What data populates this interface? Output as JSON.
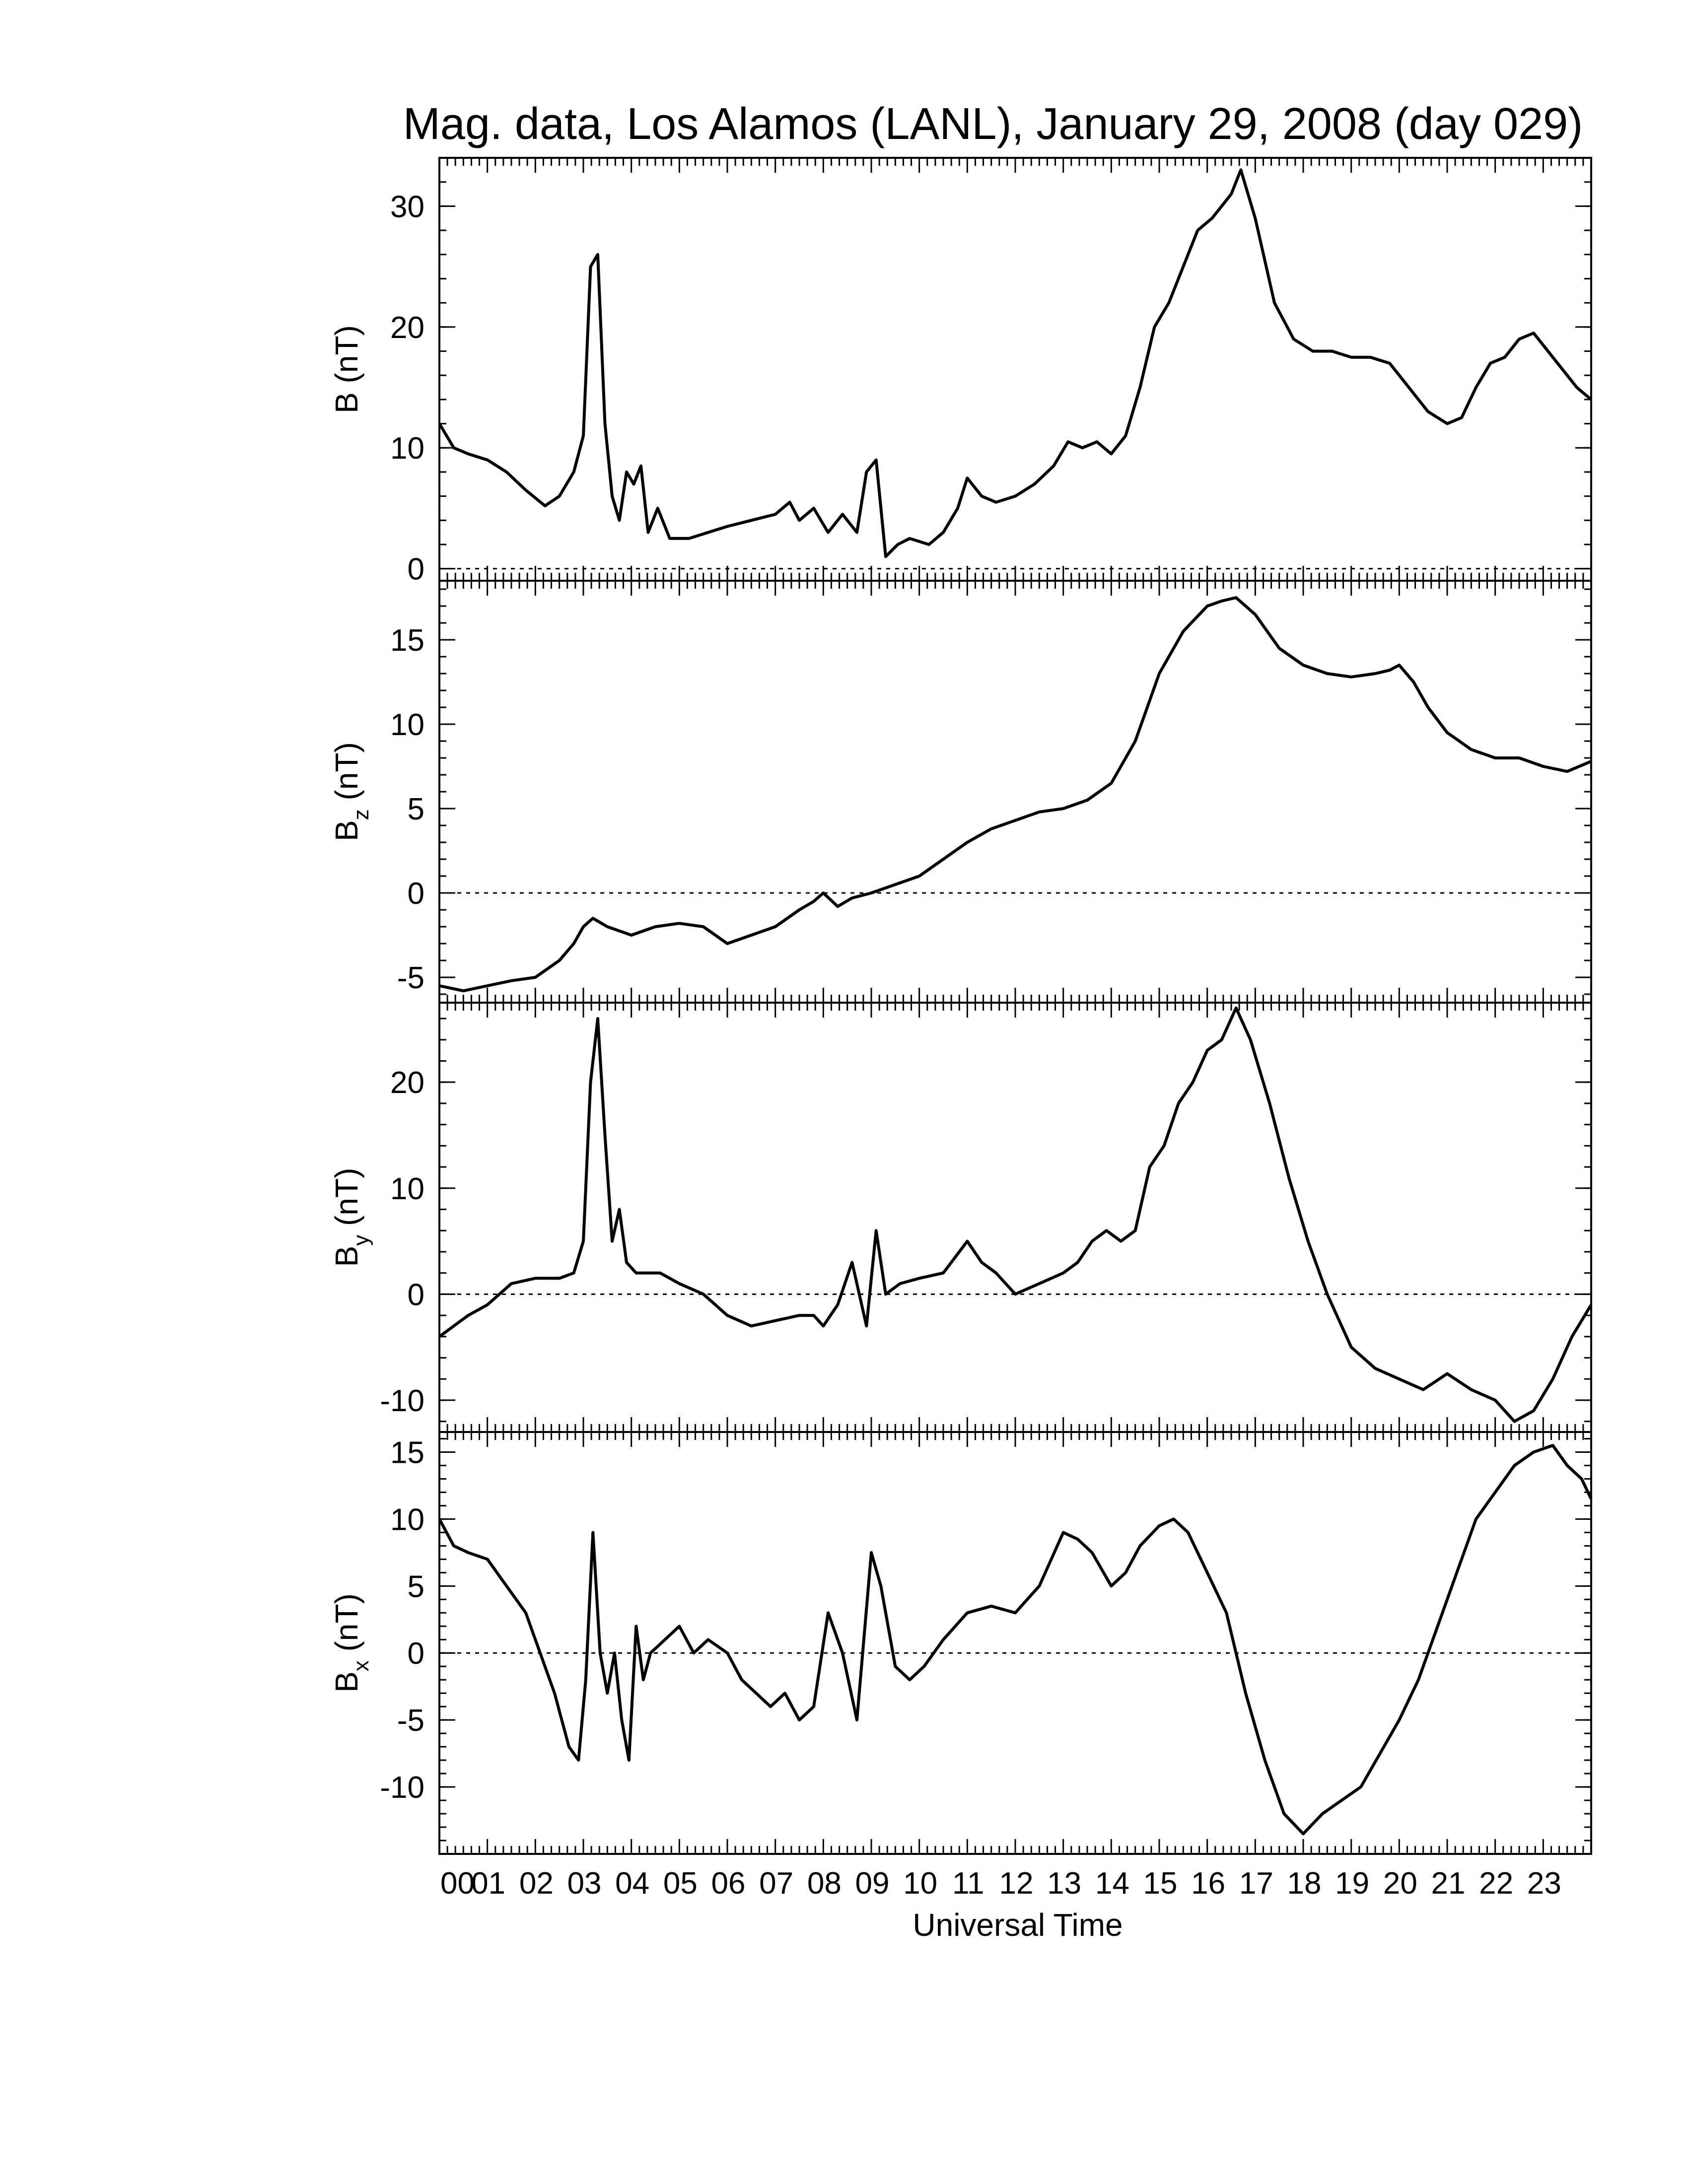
{
  "figure": {
    "title": "Mag. data, Los Alamos (LANL), January 29, 2008 (day 029)",
    "xlabel": "Universal Time"
  },
  "chart_data": [
    {
      "type": "line",
      "name": "B",
      "ylabel": "B (nT)",
      "ylabel_main": "B",
      "ylabel_sub": "",
      "ylabel_unit": " (nT)",
      "ylim": [
        -1,
        34
      ],
      "yticks": [
        0,
        10,
        20,
        30
      ],
      "zero_line": true,
      "x": [
        0,
        0.3,
        0.6,
        1,
        1.4,
        1.8,
        2.2,
        2.5,
        2.8,
        3,
        3.15,
        3.3,
        3.45,
        3.6,
        3.75,
        3.9,
        4.05,
        4.2,
        4.35,
        4.55,
        4.8,
        5.2,
        5.6,
        6,
        6.5,
        7,
        7.3,
        7.5,
        7.8,
        8.1,
        8.4,
        8.7,
        8.9,
        9.1,
        9.3,
        9.55,
        9.8,
        10.2,
        10.5,
        10.8,
        11,
        11.3,
        11.6,
        12,
        12.4,
        12.8,
        13.1,
        13.4,
        13.7,
        14,
        14.3,
        14.6,
        14.9,
        15.2,
        15.5,
        15.8,
        16.1,
        16.3,
        16.5,
        16.7,
        17,
        17.4,
        17.8,
        18.2,
        18.6,
        19,
        19.4,
        19.8,
        20.2,
        20.6,
        21,
        21.3,
        21.6,
        21.9,
        22.2,
        22.5,
        22.8,
        23.1,
        23.4,
        23.7,
        24
      ],
      "y": [
        12,
        10,
        9.5,
        9,
        8,
        6.5,
        5.2,
        6,
        8,
        11,
        25,
        26,
        12,
        6,
        4,
        8,
        7,
        8.5,
        3,
        5,
        2.5,
        2.5,
        3,
        3.5,
        4,
        4.5,
        5.5,
        4,
        5,
        3,
        4.5,
        3,
        8,
        9,
        1,
        2,
        2.5,
        2,
        3,
        5,
        7.5,
        6,
        5.5,
        6,
        7,
        8.5,
        10.5,
        10,
        10.5,
        9.5,
        11,
        15,
        20,
        22,
        25,
        28,
        29,
        30,
        31,
        33,
        29,
        22,
        19,
        18,
        18,
        17.5,
        17.5,
        17,
        15,
        13,
        12,
        12.5,
        15,
        17,
        17.5,
        19,
        19.5,
        18,
        16.5,
        15,
        14
      ]
    },
    {
      "type": "line",
      "name": "Bz",
      "ylabel": "Bz (nT)",
      "ylabel_main": "B",
      "ylabel_sub": "z",
      "ylabel_unit": " (nT)",
      "ylim": [
        -6.5,
        18.5
      ],
      "yticks": [
        -5,
        0,
        5,
        10,
        15
      ],
      "zero_line": true,
      "x": [
        0,
        0.5,
        1,
        1.5,
        2,
        2.5,
        2.8,
        3,
        3.2,
        3.5,
        3.8,
        4,
        4.5,
        5,
        5.5,
        6,
        6.5,
        7,
        7.5,
        7.8,
        8,
        8.3,
        8.6,
        9,
        9.5,
        10,
        10.5,
        11,
        11.5,
        12,
        12.5,
        13,
        13.5,
        14,
        14.5,
        15,
        15.5,
        16,
        16.3,
        16.6,
        17,
        17.5,
        18,
        18.5,
        19,
        19.5,
        19.8,
        20,
        20.3,
        20.6,
        21,
        21.5,
        22,
        22.5,
        23,
        23.5,
        24
      ],
      "y": [
        -5.5,
        -5.8,
        -5.5,
        -5.2,
        -5,
        -4,
        -3,
        -2,
        -1.5,
        -2,
        -2.3,
        -2.5,
        -2,
        -1.8,
        -2,
        -3,
        -2.5,
        -2,
        -1,
        -0.5,
        0,
        -0.8,
        -0.3,
        0,
        0.5,
        1,
        2,
        3,
        3.8,
        4.3,
        4.8,
        5,
        5.5,
        6.5,
        9,
        13,
        15.5,
        17,
        17.3,
        17.5,
        16.5,
        14.5,
        13.5,
        13,
        12.8,
        13,
        13.2,
        13.5,
        12.5,
        11,
        9.5,
        8.5,
        8,
        8,
        7.5,
        7.2,
        7.8
      ]
    },
    {
      "type": "line",
      "name": "By",
      "ylabel": "By (nT)",
      "ylabel_main": "B",
      "ylabel_sub": "y",
      "ylabel_unit": " (nT)",
      "ylim": [
        -13,
        27.5
      ],
      "yticks": [
        -10,
        0,
        10,
        20
      ],
      "zero_line": true,
      "x": [
        0,
        0.3,
        0.6,
        1,
        1.5,
        2,
        2.5,
        2.8,
        3,
        3.15,
        3.3,
        3.45,
        3.6,
        3.75,
        3.9,
        4.1,
        4.3,
        4.6,
        5,
        5.5,
        6,
        6.5,
        7,
        7.5,
        7.8,
        8,
        8.3,
        8.6,
        8.9,
        9.1,
        9.3,
        9.6,
        10,
        10.5,
        11,
        11.3,
        11.6,
        12,
        12.5,
        13,
        13.3,
        13.6,
        13.9,
        14.2,
        14.5,
        14.8,
        15.1,
        15.4,
        15.7,
        16,
        16.3,
        16.6,
        16.9,
        17.3,
        17.7,
        18.1,
        18.5,
        19,
        19.5,
        20,
        20.5,
        21,
        21.5,
        22,
        22.4,
        22.8,
        23.2,
        23.6,
        24
      ],
      "y": [
        -4,
        -3,
        -2,
        -1,
        1,
        1.5,
        1.5,
        2,
        5,
        20,
        26,
        15,
        5,
        8,
        3,
        2,
        2,
        2,
        1,
        0,
        -2,
        -3,
        -2.5,
        -2,
        -2,
        -3,
        -1,
        3,
        -3,
        6,
        0,
        1,
        1.5,
        2,
        5,
        3,
        2,
        0,
        1,
        2,
        3,
        5,
        6,
        5,
        6,
        12,
        14,
        18,
        20,
        23,
        24,
        27,
        24,
        18,
        11,
        5,
        0,
        -5,
        -7,
        -8,
        -9,
        -7.5,
        -9,
        -10,
        -12,
        -11,
        -8,
        -4,
        -1
      ]
    },
    {
      "type": "line",
      "name": "Bx",
      "ylabel": "Bx (nT)",
      "ylabel_main": "B",
      "ylabel_sub": "x",
      "ylabel_unit": " (nT)",
      "ylim": [
        -15,
        16.5
      ],
      "yticks": [
        -10,
        -5,
        0,
        5,
        10,
        15
      ],
      "zero_line": true,
      "x": [
        0,
        0.3,
        0.6,
        1,
        1.4,
        1.8,
        2.1,
        2.4,
        2.7,
        2.9,
        3.05,
        3.2,
        3.35,
        3.5,
        3.65,
        3.8,
        3.95,
        4.1,
        4.25,
        4.4,
        4.7,
        5,
        5.3,
        5.6,
        6,
        6.3,
        6.6,
        6.9,
        7.2,
        7.5,
        7.8,
        8.1,
        8.4,
        8.7,
        9,
        9.2,
        9.5,
        9.8,
        10.1,
        10.5,
        11,
        11.5,
        12,
        12.5,
        13,
        13.3,
        13.6,
        14,
        14.3,
        14.6,
        15,
        15.3,
        15.6,
        16,
        16.4,
        16.8,
        17.2,
        17.6,
        18,
        18.4,
        18.8,
        19.2,
        19.6,
        20,
        20.4,
        20.8,
        21.2,
        21.6,
        22,
        22.4,
        22.8,
        23.2,
        23.5,
        23.8,
        24
      ],
      "y": [
        10,
        8,
        7.5,
        7,
        5,
        3,
        0,
        -3,
        -7,
        -8,
        -2,
        9,
        0,
        -3,
        0,
        -5,
        -8,
        2,
        -2,
        0,
        1,
        2,
        0,
        1,
        0,
        -2,
        -3,
        -4,
        -3,
        -5,
        -4,
        3,
        0,
        -5,
        7.5,
        5,
        -1,
        -2,
        -1,
        1,
        3,
        3.5,
        3,
        5,
        9,
        8.5,
        7.5,
        5,
        6,
        8,
        9.5,
        10,
        9,
        6,
        3,
        -3,
        -8,
        -12,
        -13.5,
        -12,
        -11,
        -10,
        -7.5,
        -5,
        -2,
        2,
        6,
        10,
        12,
        14,
        15,
        15.5,
        14,
        13,
        11.5
      ]
    }
  ],
  "x_axis": {
    "range": [
      0,
      24
    ],
    "tick_labels": [
      "00",
      "01",
      "02",
      "03",
      "04",
      "05",
      "06",
      "07",
      "08",
      "09",
      "10",
      "11",
      "12",
      "13",
      "14",
      "15",
      "16",
      "17",
      "18",
      "19",
      "20",
      "21",
      "22",
      "23"
    ]
  }
}
